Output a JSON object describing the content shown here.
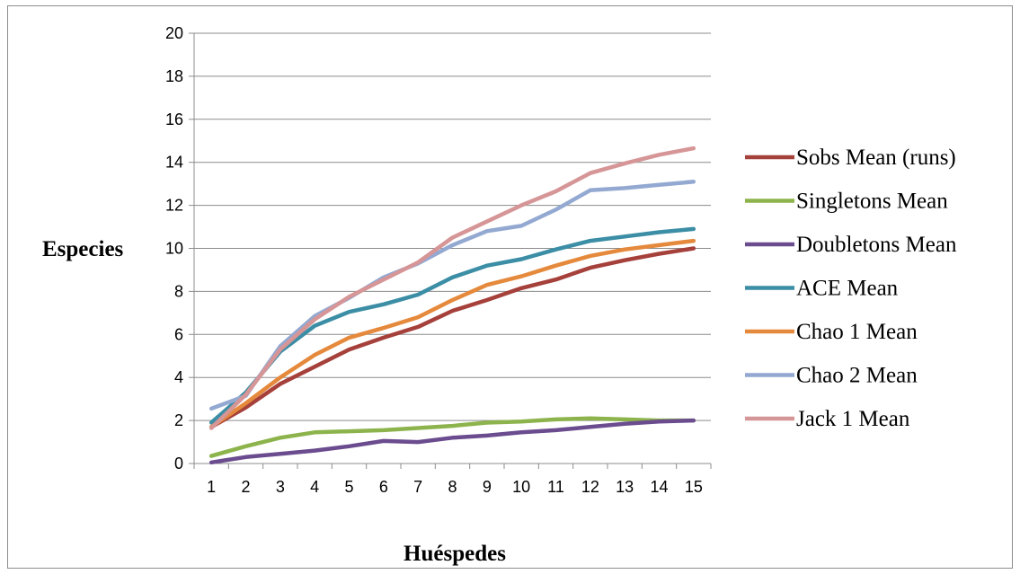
{
  "chart_data": {
    "type": "line",
    "title": "",
    "xlabel": "Huéspedes",
    "ylabel": "Especies",
    "categories": [
      "1",
      "2",
      "3",
      "4",
      "5",
      "6",
      "7",
      "8",
      "9",
      "10",
      "11",
      "12",
      "13",
      "14",
      "15"
    ],
    "ylim": [
      0,
      20
    ],
    "yticks": [
      "0",
      "2",
      "4",
      "6",
      "8",
      "10",
      "12",
      "14",
      "16",
      "18",
      "20"
    ],
    "grid": true,
    "legend": "right",
    "series": [
      {
        "name": "Sobs Mean (runs)",
        "color": "#a5403b",
        "values": [
          1.7,
          2.6,
          3.7,
          4.5,
          5.3,
          5.85,
          6.35,
          7.1,
          7.6,
          8.15,
          8.55,
          9.1,
          9.45,
          9.75,
          10.0
        ]
      },
      {
        "name": "Singletons Mean",
        "color": "#8db44c",
        "values": [
          0.35,
          0.8,
          1.2,
          1.45,
          1.5,
          1.55,
          1.65,
          1.75,
          1.9,
          1.95,
          2.05,
          2.1,
          2.05,
          2.0,
          2.0
        ]
      },
      {
        "name": "Doubletons Mean",
        "color": "#6a4c8f",
        "values": [
          0.05,
          0.3,
          0.45,
          0.6,
          0.8,
          1.05,
          1.0,
          1.2,
          1.3,
          1.45,
          1.55,
          1.7,
          1.85,
          1.95,
          2.0
        ]
      },
      {
        "name": "ACE Mean",
        "color": "#3b8ea5",
        "values": [
          1.9,
          3.3,
          5.2,
          6.4,
          7.05,
          7.4,
          7.85,
          8.65,
          9.2,
          9.5,
          9.95,
          10.35,
          10.55,
          10.75,
          10.9
        ]
      },
      {
        "name": "Chao 1 Mean",
        "color": "#e5893c",
        "values": [
          1.7,
          2.8,
          4.0,
          5.05,
          5.85,
          6.3,
          6.8,
          7.6,
          8.3,
          8.7,
          9.2,
          9.65,
          9.95,
          10.15,
          10.35
        ]
      },
      {
        "name": "Chao 2 Mean",
        "color": "#93a9d1",
        "values": [
          2.55,
          3.15,
          5.45,
          6.85,
          7.7,
          8.65,
          9.3,
          10.15,
          10.8,
          11.05,
          11.8,
          12.7,
          12.8,
          12.95,
          13.1
        ]
      },
      {
        "name": "Jack 1 Mean",
        "color": "#d69596",
        "values": [
          1.65,
          3.2,
          5.3,
          6.7,
          7.75,
          8.55,
          9.35,
          10.5,
          11.25,
          12.0,
          12.65,
          13.5,
          13.95,
          14.35,
          14.65
        ]
      }
    ]
  }
}
